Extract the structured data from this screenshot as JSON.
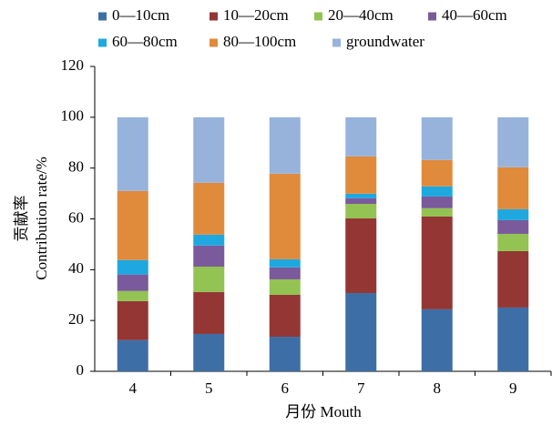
{
  "chart_data": {
    "type": "stacked_bar",
    "categories": [
      "4",
      "5",
      "6",
      "7",
      "8",
      "9"
    ],
    "series": [
      {
        "name": "0—10cm",
        "color": "#3e6ea6",
        "values": [
          12.3,
          14.7,
          13.6,
          30.8,
          24.4,
          25.1
        ]
      },
      {
        "name": "10—20cm",
        "color": "#943634",
        "values": [
          15.3,
          16.5,
          16.5,
          29.4,
          36.5,
          22.2
        ]
      },
      {
        "name": "20—40cm",
        "color": "#92c353",
        "values": [
          4,
          10,
          6.1,
          5.7,
          3.3,
          6.8
        ]
      },
      {
        "name": "40—60cm",
        "color": "#7a5a9a",
        "values": [
          6.5,
          8.3,
          4.7,
          2.2,
          4.6,
          5.4
        ]
      },
      {
        "name": "60—80cm",
        "color": "#1fa8e0",
        "values": [
          5.7,
          4.3,
          3.2,
          1.8,
          4,
          4.3
        ]
      },
      {
        "name": "80—100cm",
        "color": "#e08a3c",
        "values": [
          27.2,
          20.4,
          33.7,
          14.7,
          10.4,
          16.5
        ]
      },
      {
        "name": "groundwater",
        "color": "#97b3dc",
        "values": [
          29,
          25.8,
          22.2,
          15.4,
          16.8,
          19.7
        ]
      }
    ],
    "ylim": [
      0,
      120
    ],
    "yticks": [
      0,
      20,
      40,
      60,
      80,
      100,
      120
    ],
    "y_label": [
      "贡献率",
      "Contribution rate/%"
    ],
    "x_label": "月份 Mouth",
    "legend": "top"
  }
}
